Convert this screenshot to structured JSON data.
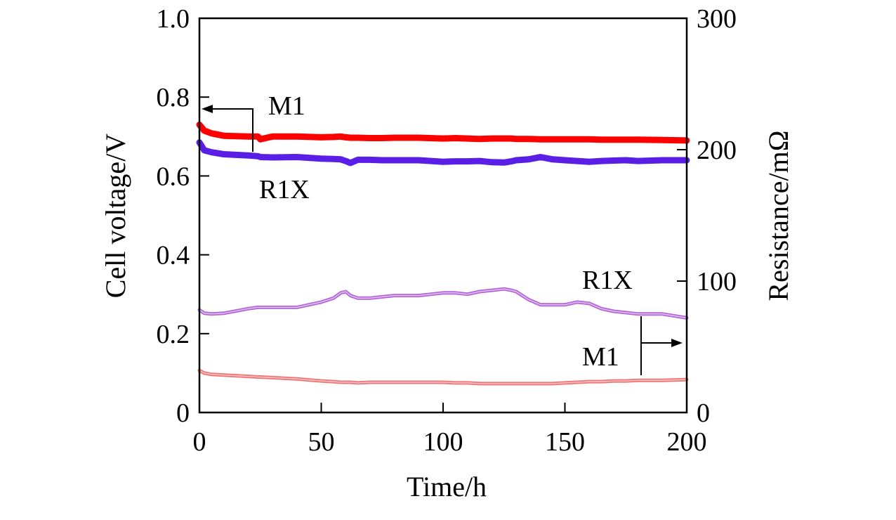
{
  "chart_data": {
    "type": "line",
    "xlabel": "Time/h",
    "ylabel_left": "Cell voltage/V",
    "ylabel_right": "Resistance/mΩ",
    "xlim": [
      0,
      200
    ],
    "ylim_left": [
      0,
      1.0
    ],
    "ylim_right": [
      0,
      300
    ],
    "x_ticks": [
      0,
      50,
      100,
      150,
      200
    ],
    "x_tick_labels": [
      "0",
      "50",
      "100",
      "150",
      "200"
    ],
    "y_left_ticks": [
      0,
      0.2,
      0.4,
      0.6,
      0.8,
      1.0
    ],
    "y_left_tick_labels": [
      "0",
      "0.2",
      "0.4",
      "0.6",
      "0.8",
      "1.0"
    ],
    "y_right_ticks": [
      0,
      100,
      200,
      300
    ],
    "y_right_tick_labels": [
      "0",
      "100",
      "200",
      "300"
    ],
    "grid": false,
    "x": [
      0,
      2,
      5,
      10,
      20,
      24,
      25,
      30,
      40,
      50,
      55,
      58,
      60,
      62,
      65,
      70,
      75,
      80,
      90,
      100,
      105,
      110,
      115,
      120,
      125,
      128,
      130,
      135,
      140,
      145,
      150,
      155,
      160,
      165,
      170,
      175,
      180,
      190,
      200
    ],
    "series": [
      {
        "name": "M1",
        "axis": "left",
        "color": "#ff0000",
        "values": [
          0.73,
          0.715,
          0.708,
          0.702,
          0.7,
          0.7,
          0.693,
          0.7,
          0.7,
          0.698,
          0.699,
          0.7,
          0.698,
          0.697,
          0.697,
          0.696,
          0.696,
          0.697,
          0.697,
          0.695,
          0.696,
          0.695,
          0.694,
          0.695,
          0.695,
          0.695,
          0.694,
          0.694,
          0.693,
          0.693,
          0.693,
          0.693,
          0.693,
          0.692,
          0.692,
          0.692,
          0.692,
          0.691,
          0.69
        ]
      },
      {
        "name": "R1X",
        "axis": "left",
        "color": "#5a1fe6",
        "values": [
          0.685,
          0.665,
          0.66,
          0.655,
          0.652,
          0.65,
          0.648,
          0.647,
          0.648,
          0.644,
          0.643,
          0.642,
          0.638,
          0.633,
          0.641,
          0.641,
          0.64,
          0.64,
          0.64,
          0.636,
          0.637,
          0.637,
          0.638,
          0.635,
          0.634,
          0.637,
          0.64,
          0.642,
          0.648,
          0.642,
          0.64,
          0.638,
          0.636,
          0.638,
          0.639,
          0.64,
          0.638,
          0.64,
          0.64
        ]
      },
      {
        "name": "R1X",
        "axis": "right",
        "color": "#9933cc",
        "values": [
          78,
          75.5,
          75,
          75.5,
          79,
          80,
          80,
          80,
          80,
          84,
          87,
          91,
          92,
          89,
          87,
          87,
          88,
          89,
          89,
          91,
          91,
          90,
          92,
          93,
          94,
          93,
          92,
          86,
          82,
          82,
          82,
          84,
          83,
          79,
          77,
          76,
          75,
          75,
          72
        ]
      },
      {
        "name": "M1",
        "axis": "right",
        "color": "#ee4444",
        "values": [
          32,
          30,
          29,
          28.5,
          27.5,
          27,
          27,
          26.5,
          25.5,
          24,
          23.5,
          23,
          23,
          23,
          22.5,
          23,
          23,
          23,
          23,
          23,
          22.5,
          22.5,
          22,
          22,
          22,
          22,
          22,
          22,
          22,
          22,
          22.5,
          23,
          23.5,
          23.5,
          24,
          24,
          24.5,
          24.5,
          25
        ]
      }
    ],
    "annotations": [
      {
        "text": "M1",
        "series": "M1 (left)",
        "arrow": "left"
      },
      {
        "text": "R1X",
        "series": "R1X (left)"
      },
      {
        "text": "R1X",
        "series": "R1X (right)"
      },
      {
        "text": "M1",
        "series": "M1 (right)",
        "arrow": "right"
      }
    ]
  }
}
